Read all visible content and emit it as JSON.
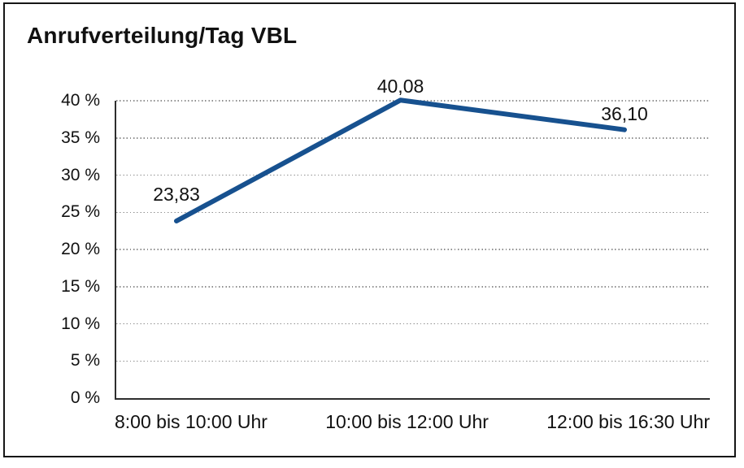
{
  "title": "Anrufverteilung/Tag VBL",
  "colors": {
    "line": "#17518F",
    "grid": "#8f8f8f",
    "axis": "#2e2e2e",
    "text": "#111111",
    "frame": "#161616",
    "background": "#ffffff"
  },
  "chart_data": {
    "type": "line",
    "title": "Anrufverteilung/Tag VBL",
    "categories": [
      "8:00 bis 10:00 Uhr",
      "10:00 bis 12:00 Uhr",
      "12:00 bis 16:30 Uhr"
    ],
    "values": [
      23.83,
      40.08,
      36.1
    ],
    "value_labels": [
      "23,83",
      "40,08",
      "36,10"
    ],
    "xlabel": "",
    "ylabel": "",
    "ylim": [
      0,
      40
    ],
    "y_tick_step": 5,
    "y_tick_labels": [
      "0 %",
      "5 %",
      "10 %",
      "15 %",
      "20 %",
      "25 %",
      "30 %",
      "35 %",
      "40 %"
    ],
    "grid": "horizontal-dotted",
    "legend": "none"
  }
}
